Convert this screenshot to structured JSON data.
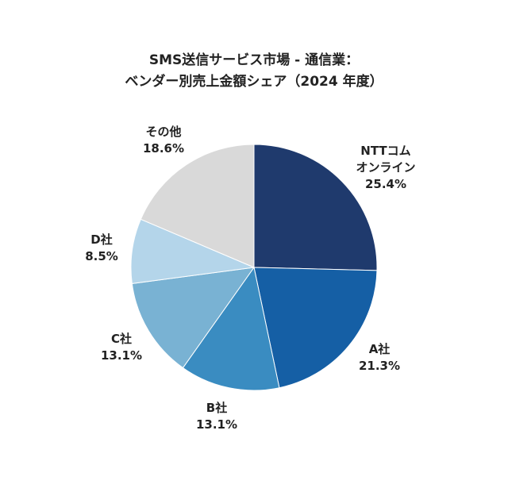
{
  "chart_data": {
    "type": "pie",
    "title": [
      "SMS送信サービス市場 - 通信業：",
      "ベンダー別売上金額シェア（2024 年度）"
    ],
    "slices": [
      {
        "label": "NTTコム オンライン",
        "label_lines": [
          "NTTコム",
          "オンライン"
        ],
        "value": 25.4,
        "value_label": "25.4%",
        "color": "#1f3a6d"
      },
      {
        "label": "A社",
        "label_lines": [
          "A社"
        ],
        "value": 21.3,
        "value_label": "21.3%",
        "color": "#155fa5"
      },
      {
        "label": "B社",
        "label_lines": [
          "B社"
        ],
        "value": 13.1,
        "value_label": "13.1%",
        "color": "#3a8cc1"
      },
      {
        "label": "C社",
        "label_lines": [
          "C社"
        ],
        "value": 13.1,
        "value_label": "13.1%",
        "color": "#79b2d3"
      },
      {
        "label": "D社",
        "label_lines": [
          "D社"
        ],
        "value": 8.5,
        "value_label": "8.5%",
        "color": "#b4d5ea"
      },
      {
        "label": "その他",
        "label_lines": [
          "その他"
        ],
        "value": 18.6,
        "value_label": "18.6%",
        "color": "#d9d9d9"
      }
    ],
    "start": "12 o'clock",
    "direction": "clockwise"
  }
}
